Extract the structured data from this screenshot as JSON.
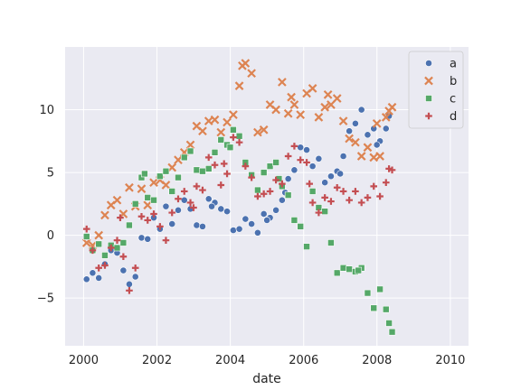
{
  "chart_data": {
    "type": "scatter",
    "title": "",
    "xlabel": "date",
    "ylabel": "",
    "xlim": [
      "1999-07-01",
      "2010-07-01"
    ],
    "ylim": [
      -8.8,
      15.0
    ],
    "x_ticks": [
      "2000",
      "2002",
      "2004",
      "2006",
      "2008",
      "2010"
    ],
    "y_ticks": [
      -5,
      0,
      5,
      10
    ],
    "grid": true,
    "legend_position": "top-right",
    "series": [
      {
        "name": "a",
        "marker": "circle",
        "color": "#4c72b0",
        "points": [
          [
            "2000-01-31",
            -3.5
          ],
          [
            "2000-03-31",
            -3.0
          ],
          [
            "2000-05-31",
            -3.4
          ],
          [
            "2000-07-31",
            -2.3
          ],
          [
            "2000-09-30",
            -1.2
          ],
          [
            "2000-11-30",
            -1.4
          ],
          [
            "2001-01-31",
            -2.8
          ],
          [
            "2001-03-31",
            -3.9
          ],
          [
            "2001-05-31",
            -3.3
          ],
          [
            "2001-07-31",
            -0.2
          ],
          [
            "2001-09-30",
            -0.3
          ],
          [
            "2001-11-30",
            1.4
          ],
          [
            "2002-01-31",
            0.5
          ],
          [
            "2002-03-31",
            2.3
          ],
          [
            "2002-05-31",
            0.9
          ],
          [
            "2002-07-31",
            2.0
          ],
          [
            "2002-09-30",
            2.8
          ],
          [
            "2002-11-30",
            2.1
          ],
          [
            "2003-01-31",
            0.8
          ],
          [
            "2003-03-31",
            0.7
          ],
          [
            "2003-05-31",
            2.9
          ],
          [
            "2003-07-31",
            2.6
          ],
          [
            "2003-09-30",
            2.1
          ],
          [
            "2003-11-30",
            1.9
          ],
          [
            "2004-01-31",
            0.4
          ],
          [
            "2004-03-31",
            0.5
          ],
          [
            "2004-05-31",
            1.3
          ],
          [
            "2004-07-31",
            0.9
          ],
          [
            "2004-09-30",
            0.2
          ],
          [
            "2004-11-30",
            1.7
          ],
          [
            "2005-01-31",
            1.4
          ],
          [
            "2005-03-31",
            2.0
          ],
          [
            "2005-05-31",
            2.8
          ],
          [
            "2005-07-31",
            4.5
          ],
          [
            "2005-09-30",
            5.2
          ],
          [
            "2005-11-30",
            7.0
          ],
          [
            "2006-01-31",
            6.8
          ],
          [
            "2006-03-31",
            5.5
          ],
          [
            "2006-05-31",
            6.1
          ],
          [
            "2006-07-31",
            4.2
          ],
          [
            "2006-09-30",
            4.7
          ],
          [
            "2006-11-30",
            5.1
          ],
          [
            "2007-01-31",
            6.3
          ],
          [
            "2007-03-31",
            8.3
          ],
          [
            "2007-05-31",
            8.9
          ],
          [
            "2007-07-31",
            10.0
          ],
          [
            "2007-09-30",
            8.0
          ],
          [
            "2007-11-30",
            8.5
          ],
          [
            "2008-01-31",
            7.5
          ],
          [
            "2008-03-31",
            8.5
          ],
          [
            "2008-04-30",
            9.5
          ],
          [
            "2003-06-30",
            2.3
          ],
          [
            "2004-12-31",
            1.2
          ],
          [
            "2005-06-30",
            3.4
          ],
          [
            "2006-12-31",
            4.9
          ],
          [
            "2007-12-31",
            7.2
          ]
        ]
      },
      {
        "name": "b",
        "marker": "x",
        "color": "#dd8452",
        "points": [
          [
            "2000-01-31",
            -0.6
          ],
          [
            "2000-03-31",
            -0.8
          ],
          [
            "2000-05-31",
            0.0
          ],
          [
            "2000-07-31",
            1.6
          ],
          [
            "2000-09-30",
            2.4
          ],
          [
            "2000-11-30",
            2.8
          ],
          [
            "2001-01-31",
            1.7
          ],
          [
            "2001-03-31",
            3.8
          ],
          [
            "2001-05-31",
            2.3
          ],
          [
            "2001-07-31",
            3.7
          ],
          [
            "2001-09-30",
            2.4
          ],
          [
            "2001-11-30",
            4.2
          ],
          [
            "2002-01-31",
            4.4
          ],
          [
            "2002-03-31",
            4.0
          ],
          [
            "2002-05-31",
            5.4
          ],
          [
            "2002-07-31",
            6.0
          ],
          [
            "2002-09-30",
            6.6
          ],
          [
            "2002-11-30",
            7.2
          ],
          [
            "2003-01-31",
            8.7
          ],
          [
            "2003-03-31",
            8.3
          ],
          [
            "2003-05-31",
            9.1
          ],
          [
            "2003-07-31",
            9.2
          ],
          [
            "2003-09-30",
            8.2
          ],
          [
            "2003-11-30",
            9.0
          ],
          [
            "2004-01-31",
            9.6
          ],
          [
            "2004-03-31",
            11.9
          ],
          [
            "2004-05-31",
            13.7
          ],
          [
            "2004-07-31",
            12.9
          ],
          [
            "2004-09-30",
            8.2
          ],
          [
            "2004-11-30",
            8.4
          ],
          [
            "2005-01-31",
            10.4
          ],
          [
            "2005-03-31",
            10.0
          ],
          [
            "2005-05-31",
            12.2
          ],
          [
            "2005-07-31",
            9.7
          ],
          [
            "2005-09-30",
            10.4
          ],
          [
            "2005-11-30",
            9.6
          ],
          [
            "2006-01-31",
            11.3
          ],
          [
            "2006-03-31",
            11.7
          ],
          [
            "2006-05-31",
            9.4
          ],
          [
            "2006-07-31",
            10.2
          ],
          [
            "2006-09-30",
            10.4
          ],
          [
            "2006-11-30",
            10.9
          ],
          [
            "2007-01-31",
            9.1
          ],
          [
            "2007-03-31",
            7.7
          ],
          [
            "2007-05-31",
            7.4
          ],
          [
            "2007-07-31",
            6.3
          ],
          [
            "2007-09-30",
            7.0
          ],
          [
            "2007-11-30",
            6.2
          ],
          [
            "2008-01-31",
            6.3
          ],
          [
            "2008-03-31",
            9.4
          ],
          [
            "2008-05-31",
            10.2
          ],
          [
            "2004-04-30",
            13.5
          ],
          [
            "2005-08-31",
            11.0
          ],
          [
            "2006-08-31",
            11.2
          ],
          [
            "2007-12-31",
            8.9
          ],
          [
            "2008-04-30",
            9.9
          ]
        ]
      },
      {
        "name": "c",
        "marker": "square",
        "color": "#55a868",
        "points": [
          [
            "2000-01-31",
            -0.1
          ],
          [
            "2000-03-31",
            -1.2
          ],
          [
            "2000-05-31",
            -0.7
          ],
          [
            "2000-07-31",
            -1.6
          ],
          [
            "2000-09-30",
            -0.8
          ],
          [
            "2000-11-30",
            -1.0
          ],
          [
            "2001-01-31",
            -0.6
          ],
          [
            "2001-03-31",
            0.8
          ],
          [
            "2001-05-31",
            2.5
          ],
          [
            "2001-07-31",
            4.6
          ],
          [
            "2001-09-30",
            3.0
          ],
          [
            "2001-11-30",
            2.8
          ],
          [
            "2002-01-31",
            4.7
          ],
          [
            "2002-03-31",
            5.1
          ],
          [
            "2002-05-31",
            3.5
          ],
          [
            "2002-07-31",
            4.6
          ],
          [
            "2002-09-30",
            6.2
          ],
          [
            "2002-11-30",
            6.7
          ],
          [
            "2003-01-31",
            5.2
          ],
          [
            "2003-03-31",
            5.1
          ],
          [
            "2003-05-31",
            5.3
          ],
          [
            "2003-07-31",
            6.6
          ],
          [
            "2003-09-30",
            7.6
          ],
          [
            "2003-11-30",
            7.2
          ],
          [
            "2004-01-31",
            8.4
          ],
          [
            "2004-03-31",
            7.9
          ],
          [
            "2004-05-31",
            5.8
          ],
          [
            "2004-07-31",
            4.8
          ],
          [
            "2004-09-30",
            3.6
          ],
          [
            "2004-11-30",
            5.0
          ],
          [
            "2005-01-31",
            5.5
          ],
          [
            "2005-03-31",
            5.8
          ],
          [
            "2005-05-31",
            3.9
          ],
          [
            "2005-07-31",
            3.2
          ],
          [
            "2005-09-30",
            1.2
          ],
          [
            "2005-11-30",
            0.7
          ],
          [
            "2006-01-31",
            -0.9
          ],
          [
            "2006-03-31",
            3.5
          ],
          [
            "2006-05-31",
            2.2
          ],
          [
            "2006-07-31",
            1.9
          ],
          [
            "2006-09-30",
            -0.6
          ],
          [
            "2006-11-30",
            -3.0
          ],
          [
            "2007-01-31",
            -2.6
          ],
          [
            "2007-03-31",
            -2.7
          ],
          [
            "2007-05-31",
            -2.9
          ],
          [
            "2007-07-31",
            -2.6
          ],
          [
            "2007-09-30",
            -4.6
          ],
          [
            "2007-11-30",
            -5.8
          ],
          [
            "2008-01-31",
            -4.3
          ],
          [
            "2008-03-31",
            -5.9
          ],
          [
            "2008-05-31",
            -7.7
          ],
          [
            "2001-08-31",
            4.9
          ],
          [
            "2003-12-31",
            7.0
          ],
          [
            "2005-04-30",
            4.5
          ],
          [
            "2007-06-30",
            -2.8
          ],
          [
            "2008-04-30",
            -7.0
          ]
        ]
      },
      {
        "name": "d",
        "marker": "plus",
        "color": "#c44e52",
        "points": [
          [
            "2000-01-31",
            0.5
          ],
          [
            "2000-03-31",
            -1.2
          ],
          [
            "2000-05-31",
            -2.6
          ],
          [
            "2000-07-31",
            -2.4
          ],
          [
            "2000-09-30",
            -1.0
          ],
          [
            "2000-11-30",
            -0.4
          ],
          [
            "2001-01-31",
            -1.7
          ],
          [
            "2001-03-31",
            -4.4
          ],
          [
            "2001-05-31",
            -2.6
          ],
          [
            "2001-07-31",
            1.5
          ],
          [
            "2001-09-30",
            1.2
          ],
          [
            "2001-11-30",
            1.7
          ],
          [
            "2002-01-31",
            0.7
          ],
          [
            "2002-03-31",
            -0.4
          ],
          [
            "2002-05-31",
            1.8
          ],
          [
            "2002-07-31",
            2.9
          ],
          [
            "2002-09-30",
            3.5
          ],
          [
            "2002-11-30",
            2.6
          ],
          [
            "2003-01-31",
            3.9
          ],
          [
            "2003-03-31",
            3.6
          ],
          [
            "2003-05-31",
            6.2
          ],
          [
            "2003-07-31",
            5.6
          ],
          [
            "2003-09-30",
            4.0
          ],
          [
            "2003-11-30",
            4.9
          ],
          [
            "2004-01-31",
            7.8
          ],
          [
            "2004-03-31",
            7.4
          ],
          [
            "2004-05-31",
            5.5
          ],
          [
            "2004-07-31",
            4.6
          ],
          [
            "2004-09-30",
            3.1
          ],
          [
            "2004-11-30",
            3.3
          ],
          [
            "2005-01-31",
            3.5
          ],
          [
            "2005-03-31",
            4.4
          ],
          [
            "2005-05-31",
            4.1
          ],
          [
            "2005-07-31",
            6.3
          ],
          [
            "2005-09-30",
            7.1
          ],
          [
            "2005-11-30",
            6.0
          ],
          [
            "2006-01-31",
            5.8
          ],
          [
            "2006-03-31",
            2.6
          ],
          [
            "2006-05-31",
            1.8
          ],
          [
            "2006-07-31",
            3.0
          ],
          [
            "2006-09-30",
            2.7
          ],
          [
            "2006-11-30",
            3.8
          ],
          [
            "2007-01-31",
            3.5
          ],
          [
            "2007-03-31",
            2.8
          ],
          [
            "2007-05-31",
            3.5
          ],
          [
            "2007-07-31",
            2.6
          ],
          [
            "2007-09-30",
            3.0
          ],
          [
            "2007-11-30",
            3.9
          ],
          [
            "2008-01-31",
            3.1
          ],
          [
            "2008-03-31",
            4.2
          ],
          [
            "2008-05-31",
            5.2
          ],
          [
            "2000-12-31",
            1.4
          ],
          [
            "2002-12-31",
            2.2
          ],
          [
            "2003-10-31",
            5.7
          ],
          [
            "2006-02-28",
            4.1
          ],
          [
            "2008-04-30",
            5.3
          ]
        ]
      }
    ]
  }
}
